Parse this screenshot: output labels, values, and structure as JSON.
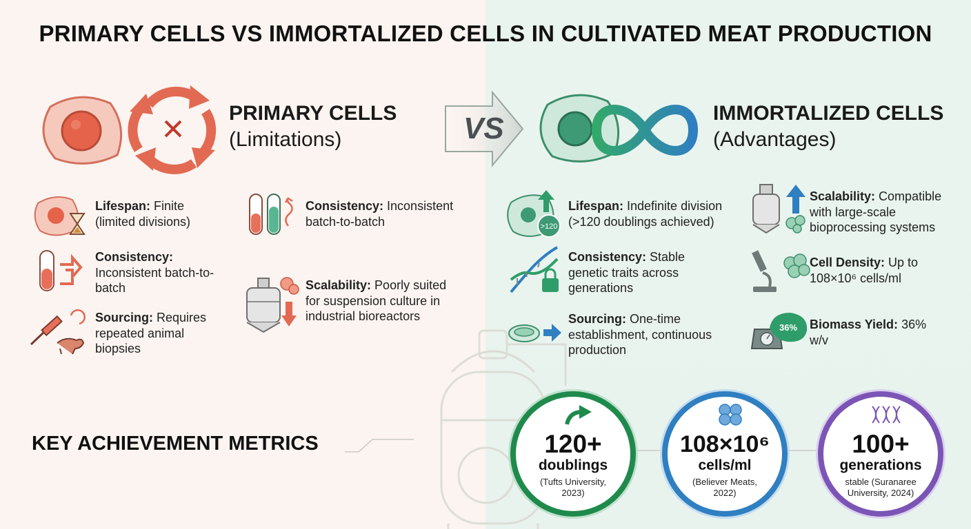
{
  "title": "PRIMARY CELLS VS IMMORTALIZED CELLS IN CULTIVATED MEAT PRODUCTION",
  "vs_label": "VS",
  "primary": {
    "heading": "PRIMARY CELLS",
    "subheading": "(Limitations)",
    "items": [
      {
        "label": "Lifespan:",
        "text": " Finite (limited divisions)"
      },
      {
        "label": "Consistency:",
        "text": " Inconsistent batch-to-batch"
      },
      {
        "label": "Sourcing:",
        "text": " Requires repeated animal biopsies"
      },
      {
        "label": "Consistency:",
        "text": " Inconsistent batch-to-batch"
      },
      {
        "label": "Scalability:",
        "text": " Poorly suited for suspension culture in industrial bioreactors"
      }
    ]
  },
  "immortalized": {
    "heading": "IMMORTALIZED CELLS",
    "subheading": "(Advantages)",
    "items": [
      {
        "label": "Lifespan:",
        "text": " Indefinite division (>120 doublings achieved)",
        "icon_text": ">120"
      },
      {
        "label": "Consistency:",
        "text": " Stable genetic traits across generations"
      },
      {
        "label": "Sourcing:",
        "text": " One-time establishment, continuous production"
      },
      {
        "label": "Scalability:",
        "text": " Compatible with large-scale bioprocessing systems"
      },
      {
        "label": "Cell Density:",
        "text": " Up to 108×10⁶ cells/ml"
      },
      {
        "label": "Biomass Yield:",
        "text": " 36% w/v",
        "icon_text": "36%"
      }
    ]
  },
  "metrics": {
    "heading": "KEY ACHIEVEMENT METRICS",
    "items": [
      {
        "big": "120+",
        "mid": "doublings",
        "small": "(Tufts University, 2023)",
        "color": "#1f8a4c"
      },
      {
        "big": "108×10⁶",
        "mid": "cells/ml",
        "small": "(Believer Meats, 2022)",
        "color": "#2f7fc1"
      },
      {
        "big": "100+",
        "mid": "generations",
        "small": "stable (Suranaree University, 2024)",
        "color": "#7b55b5"
      }
    ]
  },
  "colors": {
    "primary_accent": "#e2644d",
    "immortal_green": "#2f9d6a",
    "immortal_blue": "#2f7fc1",
    "immortal_purple": "#7b55b5"
  }
}
